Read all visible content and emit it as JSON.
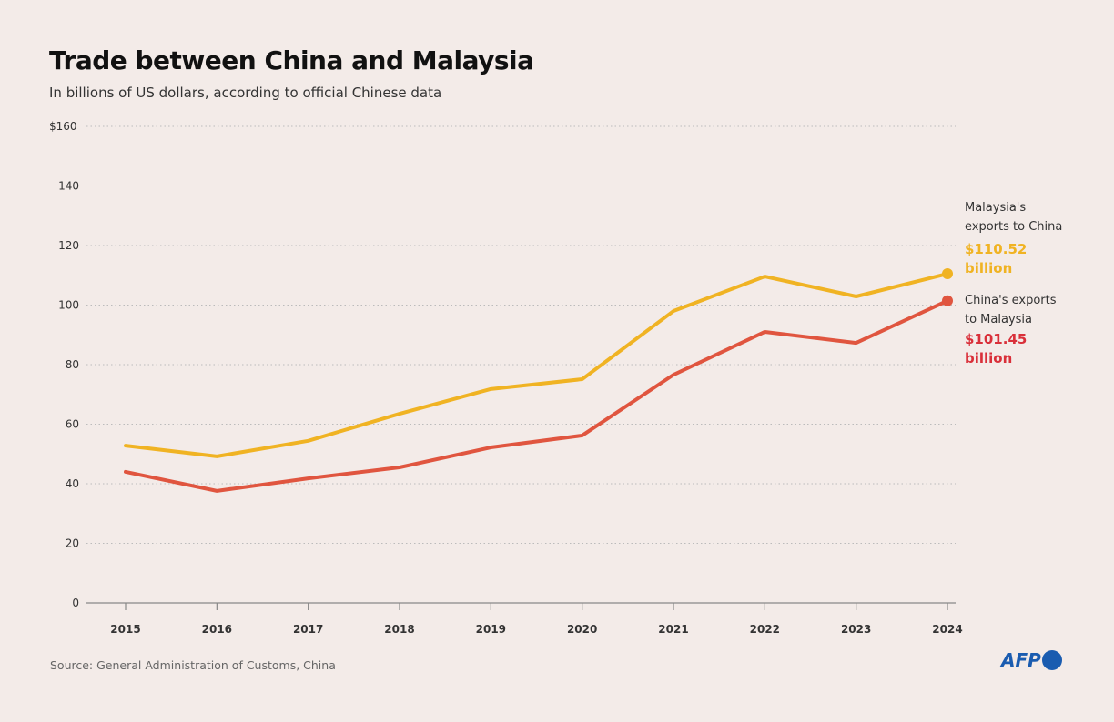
{
  "chart_data": {
    "type": "line",
    "title": "Trade between China and Malaysia",
    "subtitle": "In billions of US dollars, according to official Chinese data",
    "x": [
      2015,
      2016,
      2017,
      2018,
      2019,
      2020,
      2021,
      2022,
      2023,
      2024
    ],
    "ylim": [
      0,
      160
    ],
    "yticks": [
      0,
      20,
      40,
      60,
      80,
      100,
      120,
      140,
      160
    ],
    "ytick_labels": [
      "0",
      "20",
      "40",
      "60",
      "80",
      "100",
      "120",
      "140",
      "$160"
    ],
    "grid": true,
    "series": [
      {
        "name": "Malaysia's exports to China",
        "color": "#f0b323",
        "values": [
          52.8,
          49.2,
          54.4,
          63.5,
          71.8,
          75.1,
          98.0,
          109.6,
          102.9,
          110.52
        ],
        "end_label": "$110.52 billion"
      },
      {
        "name": "China's exports to Malaysia",
        "color": "#e0553f",
        "values": [
          44.0,
          37.6,
          41.8,
          45.5,
          52.2,
          56.2,
          76.6,
          91.0,
          87.3,
          101.45
        ],
        "end_label": "$101.45 billion"
      }
    ],
    "source": "Source: General Administration of Customs, China"
  },
  "labels": {
    "s0_line1": "Malaysia's",
    "s0_line2": "exports to China",
    "s0_val1": "$110.52",
    "s0_val2": "billion",
    "s1_line1": "China's exports",
    "s1_line2": "to Malaysia",
    "s1_val1": "$101.45",
    "s1_val2": "billion",
    "s1_color": "#d9303a"
  },
  "logo": "AFP"
}
